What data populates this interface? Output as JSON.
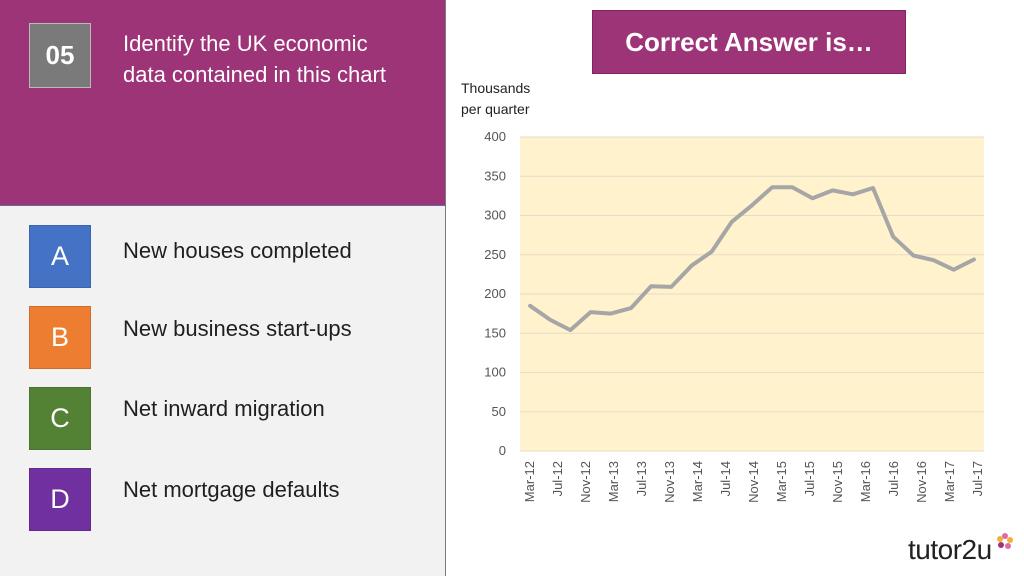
{
  "question": {
    "number": "05",
    "text": "Identify the UK economic data contained in this chart"
  },
  "options": [
    {
      "letter": "A",
      "text": "New houses completed",
      "color": "#4472c4"
    },
    {
      "letter": "B",
      "text": "New business start-ups",
      "color": "#ed7d31"
    },
    {
      "letter": "C",
      "text": "Net inward migration",
      "color": "#548235"
    },
    {
      "letter": "D",
      "text": "Net mortgage defaults",
      "color": "#7030a0"
    }
  ],
  "answer_label": "Correct Answer is…",
  "brand": "tutor2u",
  "colors": {
    "header_bg": "#9e3478",
    "plot_bg": "#fff2cc",
    "line": "#a6a6a6"
  },
  "chart_data": {
    "type": "line",
    "ylabel_lines": [
      "Thousands",
      "per quarter"
    ],
    "ylim": [
      0,
      400
    ],
    "yticks": [
      0,
      50,
      100,
      150,
      200,
      250,
      300,
      350,
      400
    ],
    "grid": true,
    "xtick_labels": [
      "Mar-12",
      "Jul-12",
      "Nov-12",
      "Mar-13",
      "Jul-13",
      "Nov-13",
      "Mar-14",
      "Jul-14",
      "Nov-14",
      "Mar-15",
      "Jul-15",
      "Nov-15",
      "Mar-16",
      "Jul-16",
      "Nov-16",
      "Mar-17",
      "Jul-17"
    ],
    "series": [
      {
        "values": [
          185,
          167,
          154,
          177,
          175,
          182,
          210,
          209,
          236,
          254,
          292,
          313,
          336,
          336,
          322,
          332,
          327,
          335,
          273,
          249,
          243,
          231,
          244
        ]
      }
    ]
  }
}
